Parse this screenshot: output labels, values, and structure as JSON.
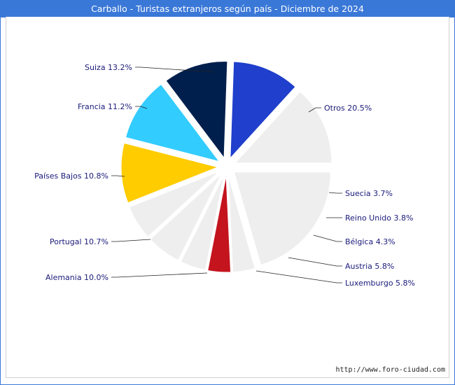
{
  "title": "Carballo - Turistas extranjeros según país - Diciembre de 2024",
  "footer": "http://www.foro-ciudad.com",
  "chart_data": {
    "type": "pie",
    "title": "Carballo - Turistas extranjeros según país - Diciembre de 2024",
    "slices": [
      {
        "name": "Otros",
        "value": 20.5,
        "label": "Otros 20.5%",
        "color": "#eeeeee"
      },
      {
        "name": "Suecia",
        "value": 3.7,
        "label": "Suecia 3.7%",
        "color": "#eeeeee"
      },
      {
        "name": "Reino Unido",
        "value": 3.8,
        "label": "Reino Unido 3.8%",
        "color": "#c4141e"
      },
      {
        "name": "Bélgica",
        "value": 4.3,
        "label": "Bélgica 4.3%",
        "color": "#eeeeee"
      },
      {
        "name": "Austria",
        "value": 5.8,
        "label": "Austria 5.8%",
        "color": "#eeeeee"
      },
      {
        "name": "Luxemburgo",
        "value": 5.8,
        "label": "Luxemburgo 5.8%",
        "color": "#eeeeee"
      },
      {
        "name": "Alemania",
        "value": 10.0,
        "label": "Alemania 10.0%",
        "color": "#ffcc00"
      },
      {
        "name": "Portugal",
        "value": 10.7,
        "label": "Portugal 10.7%",
        "color": "#33ccff"
      },
      {
        "name": "Países Bajos",
        "value": 10.8,
        "label": "Países Bajos 10.8%",
        "color": "#001f4d"
      },
      {
        "name": "Francia",
        "value": 11.2,
        "label": "Francia 11.2%",
        "color": "#1f3fcc"
      },
      {
        "name": "Suiza",
        "value": 13.2,
        "label": "Suiza 13.2%",
        "color": "#eeeeee"
      }
    ]
  }
}
